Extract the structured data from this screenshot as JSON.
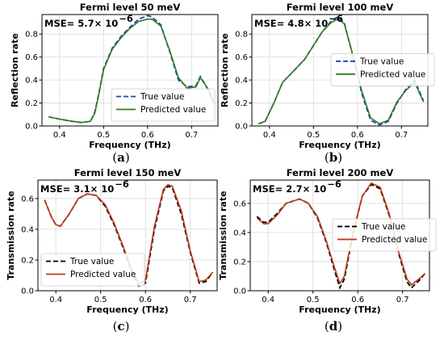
{
  "chart_data": [
    {
      "type": "line",
      "panel": "a",
      "title": "Fermi level 50 meV",
      "xlabel": "Frequency (THz)",
      "ylabel": "Reflection rate",
      "caption": "a",
      "mse_text": "MSE= 5.7× 10",
      "mse_exp": "−6",
      "xlim": [
        0.36,
        0.76
      ],
      "ylim": [
        0.0,
        0.97
      ],
      "xticks": [
        "0.4",
        "0.5",
        "0.6",
        "0.7"
      ],
      "xtick_values": [
        0.4,
        0.5,
        0.6,
        0.7
      ],
      "yticks": [
        "0.0",
        "0.2",
        "0.4",
        "0.6",
        "0.8"
      ],
      "ytick_values": [
        0.0,
        0.2,
        0.4,
        0.6,
        0.8
      ],
      "legend_position": "lower-right",
      "series": [
        {
          "name": "True value",
          "color": "#1f3fbf",
          "dash": "dashed",
          "x": [
            0.375,
            0.4,
            0.43,
            0.45,
            0.47,
            0.48,
            0.49,
            0.5,
            0.52,
            0.54,
            0.56,
            0.58,
            0.6,
            0.61,
            0.63,
            0.65,
            0.67,
            0.69,
            0.71,
            0.72,
            0.74,
            0.75
          ],
          "y": [
            0.08,
            0.06,
            0.04,
            0.03,
            0.04,
            0.12,
            0.3,
            0.5,
            0.68,
            0.78,
            0.86,
            0.93,
            0.96,
            0.95,
            0.88,
            0.65,
            0.4,
            0.34,
            0.35,
            0.43,
            0.3,
            0.2
          ]
        },
        {
          "name": "Predicted value",
          "color": "#2e7d1a",
          "dash": "solid",
          "x": [
            0.375,
            0.4,
            0.43,
            0.45,
            0.47,
            0.48,
            0.49,
            0.5,
            0.52,
            0.54,
            0.56,
            0.58,
            0.6,
            0.61,
            0.63,
            0.65,
            0.67,
            0.69,
            0.71,
            0.72,
            0.74,
            0.75
          ],
          "y": [
            0.08,
            0.06,
            0.04,
            0.03,
            0.04,
            0.11,
            0.29,
            0.49,
            0.67,
            0.77,
            0.85,
            0.91,
            0.93,
            0.93,
            0.87,
            0.66,
            0.42,
            0.33,
            0.34,
            0.42,
            0.31,
            0.21
          ]
        }
      ]
    },
    {
      "type": "line",
      "panel": "b",
      "title": "Fermi level 100 meV",
      "xlabel": "Frequency (THz)",
      "ylabel": "Reflection rate",
      "caption": "b",
      "mse_text": "MSE= 4.8× 10",
      "mse_exp": "−6",
      "xlim": [
        0.36,
        0.76
      ],
      "ylim": [
        0.0,
        0.97
      ],
      "xticks": [
        "0.4",
        "0.5",
        "0.6",
        "0.7"
      ],
      "xtick_values": [
        0.4,
        0.5,
        0.6,
        0.7
      ],
      "yticks": [
        "0.0",
        "0.2",
        "0.4",
        "0.6",
        "0.8"
      ],
      "ytick_values": [
        0.0,
        0.2,
        0.4,
        0.6,
        0.8
      ],
      "legend_position": "center-right",
      "series": [
        {
          "name": "True value",
          "color": "#1f3fbf",
          "dash": "dashed",
          "x": [
            0.375,
            0.39,
            0.41,
            0.43,
            0.45,
            0.48,
            0.5,
            0.52,
            0.54,
            0.555,
            0.57,
            0.59,
            0.61,
            0.63,
            0.65,
            0.67,
            0.69,
            0.71,
            0.73,
            0.75
          ],
          "y": [
            0.02,
            0.04,
            0.2,
            0.38,
            0.46,
            0.58,
            0.7,
            0.82,
            0.91,
            0.95,
            0.9,
            0.6,
            0.28,
            0.05,
            0.01,
            0.04,
            0.2,
            0.32,
            0.4,
            0.22
          ]
        },
        {
          "name": "Predicted value",
          "color": "#2e7d1a",
          "dash": "solid",
          "x": [
            0.375,
            0.39,
            0.41,
            0.43,
            0.45,
            0.48,
            0.5,
            0.52,
            0.54,
            0.555,
            0.57,
            0.59,
            0.61,
            0.63,
            0.65,
            0.67,
            0.69,
            0.71,
            0.73,
            0.75
          ],
          "y": [
            0.02,
            0.04,
            0.2,
            0.38,
            0.46,
            0.58,
            0.7,
            0.82,
            0.9,
            0.93,
            0.89,
            0.61,
            0.3,
            0.07,
            0.02,
            0.05,
            0.21,
            0.31,
            0.38,
            0.21
          ]
        }
      ]
    },
    {
      "type": "line",
      "panel": "c",
      "title": "Fermi level 150 meV",
      "xlabel": "Frequency (THz)",
      "ylabel": "Transmission rate",
      "caption": "c",
      "mse_text": "MSE= 3.1× 10",
      "mse_exp": "−6",
      "xlim": [
        0.36,
        0.76
      ],
      "ylim": [
        0.0,
        0.72
      ],
      "xticks": [
        "0.4",
        "0.5",
        "0.6",
        "0.7"
      ],
      "xtick_values": [
        0.4,
        0.5,
        0.6,
        0.7
      ],
      "yticks": [
        "0.0",
        "0.2",
        "0.4",
        "0.6"
      ],
      "ytick_values": [
        0.0,
        0.2,
        0.4,
        0.6
      ],
      "legend_position": "lower-left",
      "series": [
        {
          "name": "True value",
          "color": "#000000",
          "dash": "dashed",
          "x": [
            0.375,
            0.39,
            0.4,
            0.41,
            0.43,
            0.45,
            0.47,
            0.49,
            0.51,
            0.53,
            0.55,
            0.57,
            0.585,
            0.6,
            0.62,
            0.64,
            0.65,
            0.66,
            0.68,
            0.7,
            0.72,
            0.735,
            0.75
          ],
          "y": [
            0.59,
            0.48,
            0.43,
            0.42,
            0.5,
            0.6,
            0.63,
            0.62,
            0.55,
            0.43,
            0.28,
            0.12,
            0.03,
            0.05,
            0.4,
            0.65,
            0.68,
            0.67,
            0.5,
            0.25,
            0.05,
            0.06,
            0.12
          ]
        },
        {
          "name": "Predicted value",
          "color": "#c0391b",
          "dash": "solid",
          "x": [
            0.375,
            0.39,
            0.4,
            0.41,
            0.43,
            0.45,
            0.47,
            0.49,
            0.51,
            0.53,
            0.55,
            0.57,
            0.585,
            0.6,
            0.62,
            0.64,
            0.65,
            0.66,
            0.68,
            0.7,
            0.72,
            0.735,
            0.75
          ],
          "y": [
            0.59,
            0.48,
            0.43,
            0.42,
            0.5,
            0.6,
            0.63,
            0.62,
            0.56,
            0.44,
            0.29,
            0.13,
            0.05,
            0.07,
            0.42,
            0.66,
            0.69,
            0.68,
            0.52,
            0.26,
            0.06,
            0.07,
            0.12
          ]
        }
      ]
    },
    {
      "type": "line",
      "panel": "d",
      "title": "Fermi level 200 meV",
      "xlabel": "Frequency (THz)",
      "ylabel": "Transmission rate",
      "caption": "d",
      "mse_text": "MSE= 2.7× 10",
      "mse_exp": "−6",
      "xlim": [
        0.36,
        0.76
      ],
      "ylim": [
        0.0,
        0.76
      ],
      "xticks": [
        "0.4",
        "0.5",
        "0.6",
        "0.7"
      ],
      "xtick_values": [
        0.4,
        0.5,
        0.6,
        0.7
      ],
      "yticks": [
        "0.0",
        "0.2",
        "0.4",
        "0.6"
      ],
      "ytick_values": [
        0.0,
        0.2,
        0.4,
        0.6
      ],
      "legend_position": "center-right",
      "series": [
        {
          "name": "True value",
          "color": "#000000",
          "dash": "dashed",
          "x": [
            0.375,
            0.39,
            0.4,
            0.42,
            0.44,
            0.47,
            0.49,
            0.51,
            0.53,
            0.55,
            0.56,
            0.57,
            0.59,
            0.61,
            0.63,
            0.65,
            0.67,
            0.69,
            0.71,
            0.72,
            0.74,
            0.75
          ],
          "y": [
            0.51,
            0.47,
            0.47,
            0.53,
            0.6,
            0.63,
            0.6,
            0.5,
            0.33,
            0.12,
            0.02,
            0.08,
            0.4,
            0.65,
            0.73,
            0.7,
            0.52,
            0.27,
            0.06,
            0.02,
            0.08,
            0.12
          ]
        },
        {
          "name": "Predicted value",
          "color": "#c0391b",
          "dash": "solid",
          "x": [
            0.375,
            0.39,
            0.4,
            0.42,
            0.44,
            0.47,
            0.49,
            0.51,
            0.53,
            0.55,
            0.56,
            0.57,
            0.59,
            0.61,
            0.63,
            0.65,
            0.67,
            0.69,
            0.71,
            0.72,
            0.74,
            0.75
          ],
          "y": [
            0.5,
            0.46,
            0.46,
            0.52,
            0.6,
            0.63,
            0.6,
            0.51,
            0.34,
            0.14,
            0.05,
            0.1,
            0.41,
            0.65,
            0.74,
            0.71,
            0.53,
            0.28,
            0.08,
            0.04,
            0.09,
            0.12
          ]
        }
      ]
    }
  ]
}
